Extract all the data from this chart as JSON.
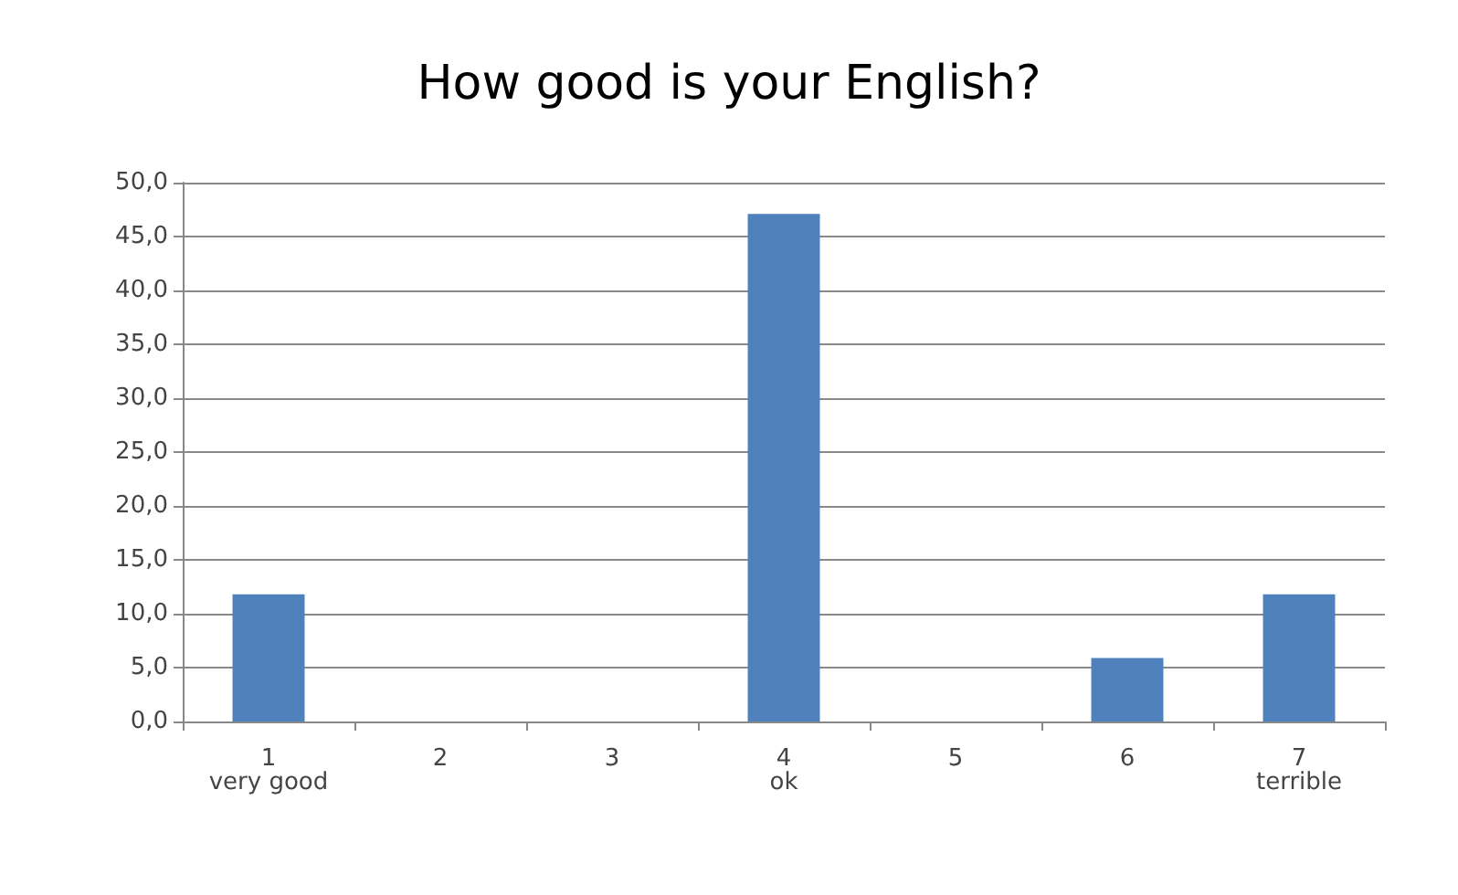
{
  "chart_data": {
    "type": "bar",
    "title": "How good is your English?",
    "categories": [
      "1 very good",
      "2",
      "3",
      "4 ok",
      "5",
      "6",
      "7 terrible"
    ],
    "values": [
      11.8,
      0,
      0,
      47.1,
      0,
      5.9,
      11.8
    ],
    "color": "#4f81bd",
    "ylim": [
      0,
      50
    ],
    "yticks": [
      {
        "value": 0,
        "label": "0,0"
      },
      {
        "value": 5,
        "label": "5,0"
      },
      {
        "value": 10,
        "label": "10,0"
      },
      {
        "value": 15,
        "label": "15,0"
      },
      {
        "value": 20,
        "label": "20,0"
      },
      {
        "value": 25,
        "label": "25,0"
      },
      {
        "value": 30,
        "label": "30,0"
      },
      {
        "value": 35,
        "label": "35,0"
      },
      {
        "value": 40,
        "label": "40,0"
      },
      {
        "value": 45,
        "label": "45,0"
      },
      {
        "value": 50,
        "label": "50,0"
      }
    ],
    "grid": "y"
  }
}
